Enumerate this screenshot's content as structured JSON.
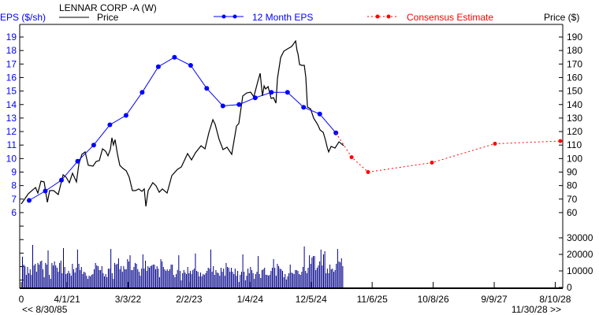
{
  "chart_data": {
    "type": "line",
    "title": "LENNAR CORP -A (W)",
    "left_axis_label": "EPS ($/sh)",
    "right_axis_label": "Price ($)",
    "legend": {
      "price": "Price",
      "eps": "12 Month EPS",
      "consensus": "Consensus Estimate"
    },
    "colors": {
      "price": "#000000",
      "eps": "#0000ff",
      "consensus": "#ff0000",
      "volume": "#00008b"
    },
    "x_unit": "weeks from start",
    "x_range": [
      0,
      426
    ],
    "x_ticks": [
      {
        "w": 0,
        "label": "0"
      },
      {
        "w": 36,
        "label": "4/1/21"
      },
      {
        "w": 84,
        "label": "3/3/22"
      },
      {
        "w": 132,
        "label": "2/2/23"
      },
      {
        "w": 180,
        "label": "1/4/24"
      },
      {
        "w": 228,
        "label": "12/5/24"
      },
      {
        "w": 276,
        "label": "11/6/25"
      },
      {
        "w": 324,
        "label": "10/8/26"
      },
      {
        "w": 372,
        "label": "9/9/27"
      },
      {
        "w": 420,
        "label": "8/10/28"
      }
    ],
    "range_start_label": "<< 8/30/85",
    "range_end_label": "11/30/28 >>",
    "eps_ticks": [
      19,
      18,
      17,
      16,
      15,
      14,
      13,
      12,
      11,
      10,
      9,
      8,
      7,
      6
    ],
    "price_ticks": [
      190,
      180,
      170,
      160,
      150,
      140,
      130,
      120,
      110,
      100,
      90,
      80,
      70,
      60
    ],
    "volume_ticks": [
      30000,
      20000,
      10000,
      0
    ],
    "eps": [
      [
        6.2,
        6.9
      ],
      [
        18.9,
        7.6
      ],
      [
        31.6,
        8.4
      ],
      [
        44.3,
        9.8
      ],
      [
        57,
        11.0
      ],
      [
        69.7,
        12.5
      ],
      [
        82.4,
        13.2
      ],
      [
        95.1,
        14.9
      ],
      [
        107.8,
        16.8
      ],
      [
        120.5,
        17.5
      ],
      [
        133.2,
        16.9
      ],
      [
        145.9,
        15.2
      ],
      [
        158.6,
        13.9
      ],
      [
        171.3,
        14.0
      ],
      [
        184,
        14.5
      ],
      [
        196.7,
        14.9
      ],
      [
        209.4,
        14.9
      ],
      [
        222.1,
        13.8
      ],
      [
        234.8,
        13.3
      ],
      [
        247.5,
        11.9
      ]
    ],
    "consensus": [
      [
        247.5,
        11.9
      ],
      [
        259.8,
        10.1
      ],
      [
        272.8,
        9.0
      ],
      [
        323,
        9.7
      ],
      [
        372.6,
        11.1
      ],
      [
        424,
        11.3
      ]
    ],
    "price": [
      [
        0,
        66.4
      ],
      [
        5.6,
        74
      ],
      [
        11.2,
        78.6
      ],
      [
        13,
        74.5
      ],
      [
        15.5,
        83.3
      ],
      [
        18,
        82.7
      ],
      [
        20.5,
        67.6
      ],
      [
        22.3,
        76.3
      ],
      [
        25.4,
        76.3
      ],
      [
        29.1,
        73.4
      ],
      [
        32.9,
        88
      ],
      [
        35.3,
        86.2
      ],
      [
        37.8,
        82.1
      ],
      [
        40.3,
        89.1
      ],
      [
        43.4,
        82.7
      ],
      [
        45.3,
        96
      ],
      [
        47.7,
        103.1
      ],
      [
        50.2,
        104.9
      ],
      [
        52.7,
        95
      ],
      [
        56.4,
        94.4
      ],
      [
        58.9,
        97.9
      ],
      [
        61.4,
        98.5
      ],
      [
        63.9,
        107.2
      ],
      [
        66.3,
        105.5
      ],
      [
        68.2,
        102
      ],
      [
        70.1,
        107
      ],
      [
        71.3,
        115.4
      ],
      [
        72.5,
        110.1
      ],
      [
        73.8,
        114
      ],
      [
        75.6,
        103.7
      ],
      [
        77.5,
        95
      ],
      [
        80,
        92.7
      ],
      [
        82.5,
        91
      ],
      [
        84.9,
        86.2
      ],
      [
        87.4,
        76.3
      ],
      [
        89.9,
        76.3
      ],
      [
        92.4,
        77.5
      ],
      [
        94.9,
        75.7
      ],
      [
        96.7,
        77.5
      ],
      [
        98,
        64.6
      ],
      [
        99.8,
        76.3
      ],
      [
        103.5,
        82.1
      ],
      [
        106,
        79.8
      ],
      [
        108.5,
        75.1
      ],
      [
        111,
        77.5
      ],
      [
        114.7,
        74.5
      ],
      [
        118.4,
        87.4
      ],
      [
        122.8,
        92
      ],
      [
        125.9,
        93.8
      ],
      [
        130.8,
        103.7
      ],
      [
        133.9,
        99
      ],
      [
        137,
        104.3
      ],
      [
        141.4,
        109.5
      ],
      [
        144.5,
        107.2
      ],
      [
        147.6,
        119.4
      ],
      [
        150.7,
        128.8
      ],
      [
        152.5,
        125.3
      ],
      [
        155.6,
        114.2
      ],
      [
        158.7,
        106.6
      ],
      [
        161.8,
        108.4
      ],
      [
        165.5,
        103.1
      ],
      [
        169.3,
        124.1
      ],
      [
        171.1,
        125.9
      ],
      [
        174.2,
        146.3
      ],
      [
        177.3,
        148.6
      ],
      [
        180.4,
        149.2
      ],
      [
        182.9,
        145.7
      ],
      [
        186,
        156.8
      ],
      [
        187.9,
        163.2
      ],
      [
        189.7,
        146.3
      ],
      [
        191,
        153.8
      ],
      [
        192.2,
        151.5
      ],
      [
        194.1,
        153.3
      ],
      [
        196.5,
        144.5
      ],
      [
        198.4,
        145.1
      ],
      [
        200.3,
        141
      ],
      [
        201.5,
        159.1
      ],
      [
        204,
        174.8
      ],
      [
        206.5,
        179.5
      ],
      [
        209.6,
        181.3
      ],
      [
        212.7,
        183
      ],
      [
        215.8,
        187.1
      ],
      [
        217,
        179.5
      ],
      [
        217.6,
        177.8
      ],
      [
        218.9,
        169.6
      ],
      [
        220.7,
        169
      ],
      [
        222.6,
        169
      ],
      [
        223.8,
        160.3
      ],
      [
        225.1,
        138.1
      ],
      [
        227.5,
        136.9
      ],
      [
        230,
        129.9
      ],
      [
        233.1,
        125.3
      ],
      [
        235,
        121.2
      ],
      [
        237.5,
        119.4
      ],
      [
        239.3,
        113.6
      ],
      [
        240.6,
        108.4
      ],
      [
        241.8,
        104.9
      ],
      [
        243.7,
        109
      ],
      [
        246.8,
        107.8
      ],
      [
        249.9,
        112.4
      ],
      [
        253.6,
        109.5
      ]
    ],
    "volume_k": [
      18.6,
      13.8,
      12.9,
      7.6,
      12.4,
      8.6,
      11,
      7.6,
      25.7,
      13.3,
      14.3,
      9.5,
      14.8,
      13.8,
      15.7,
      16.2,
      11,
      6.2,
      14.8,
      13.8,
      22.4,
      7.6,
      5.2,
      14.8,
      13.3,
      15.7,
      13.3,
      11.9,
      9.5,
      14.8,
      16.2,
      8.6,
      23.8,
      12.4,
      8.1,
      8.6,
      10,
      8.6,
      7.1,
      14.3,
      11,
      9,
      11.9,
      22.9,
      14.3,
      10.5,
      12.4,
      8.1,
      9.5,
      9,
      7.1,
      5.2,
      7.1,
      6.7,
      7.6,
      8.1,
      11,
      14.8,
      13.3,
      12.9,
      10.5,
      10.5,
      12.9,
      8.6,
      6.7,
      8.1,
      6.2,
      11.4,
      11.4,
      23.3,
      8.6,
      5.2,
      14.8,
      13.8,
      14.3,
      17.6,
      11,
      12.9,
      9.5,
      12.9,
      11,
      11,
      17.1,
      15.7,
      19.5,
      10.5,
      10.5,
      12.4,
      14.8,
      14.3,
      11,
      9.5,
      7.1,
      11.4,
      20,
      11.4,
      16.2,
      10,
      12.9,
      11.9,
      12.9,
      13.3,
      13.8,
      13.8,
      11,
      12.9,
      11.4,
      6.2,
      17.1,
      15.7,
      12.4,
      11,
      10,
      11,
      10,
      11,
      13.8,
      13.8,
      7.6,
      6.2,
      8.1,
      10.5,
      19.5,
      10,
      4.3,
      8.6,
      10.5,
      9,
      8.1,
      12.4,
      8.6,
      10,
      8.1,
      10.5,
      11.4,
      20.5,
      10,
      9.5,
      6.7,
      9,
      6.7,
      8.1,
      7.6,
      8.6,
      10,
      11.9,
      11.4,
      22.9,
      9.5,
      12.9,
      7.6,
      10.5,
      9,
      8.6,
      7.1,
      11.9,
      9.5,
      11.4,
      7.1,
      14.8,
      12.4,
      11.9,
      9.5,
      11.9,
      9.5,
      8.1,
      11.4,
      7.1,
      10,
      3.3,
      7.6,
      9.5,
      20,
      9.5,
      4.3,
      7.1,
      11.4,
      8.6,
      12.4,
      10.5,
      8.6,
      5.2,
      8.1,
      9.5,
      19,
      8.1,
      5.7,
      10.5,
      11,
      11.9,
      7.6,
      7.6,
      7.1,
      7.6,
      10,
      11.9,
      17.1,
      11.9,
      7.1,
      14.3,
      12.9,
      11.4,
      11,
      10,
      6.2,
      8.1,
      4.8,
      6.7,
      8.6,
      13.8,
      9,
      8.6,
      8.1,
      10.5,
      10.5,
      10,
      8.1,
      7.6,
      9.5,
      12.4,
      24.8,
      10,
      8.6,
      11.9,
      19.5,
      14.3,
      18.1,
      19,
      19,
      10.5,
      11.9,
      13.3,
      15.7,
      22.9,
      13.3,
      20,
      21.9,
      8.6,
      11.4,
      8.6,
      13.8,
      11,
      11.4,
      9.5,
      10.5,
      14.3,
      23.3,
      15.7,
      15.2,
      17.6,
      12.9
    ]
  }
}
